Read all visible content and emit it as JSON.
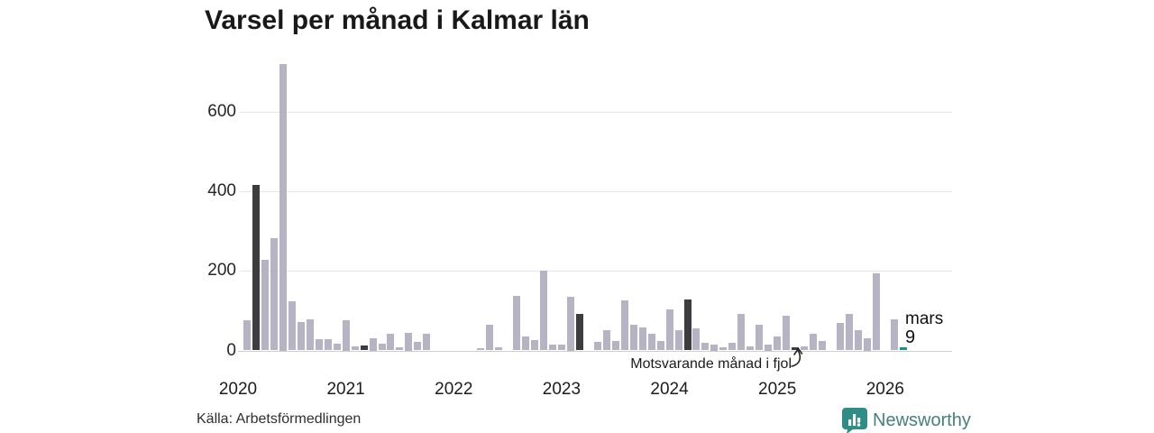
{
  "title": "Varsel per månad i Kalmar län",
  "source": "Källa: Arbetsförmedlingen",
  "annotation": "Motsvarande månad i fjol",
  "current_point_label": {
    "line1": "mars",
    "line2": "9"
  },
  "branding": {
    "name": "Newsworthy"
  },
  "colors": {
    "bar_default": "#b6b3c4",
    "bar_highlight": "#3d3c40",
    "bar_current": "#13998c",
    "grid": "#e6e6e6",
    "axis_line": "#cfcfcd",
    "text": "#1b1b1b",
    "brand_icon": "#2f8d86",
    "brand_text": "#45807f"
  },
  "chart_data": {
    "type": "bar",
    "title": "Varsel per månad i Kalmar län",
    "x_start_month": "2020-01",
    "x_end_month": "2026-03",
    "months": [
      "2020-01",
      "2020-02",
      "2020-03",
      "2020-04",
      "2020-05",
      "2020-06",
      "2020-07",
      "2020-08",
      "2020-09",
      "2020-10",
      "2020-11",
      "2020-12",
      "2021-01",
      "2021-02",
      "2021-03",
      "2021-04",
      "2021-05",
      "2021-06",
      "2021-07",
      "2021-08",
      "2021-09",
      "2021-10",
      "2021-11",
      "2021-12",
      "2022-01",
      "2022-02",
      "2022-03",
      "2022-04",
      "2022-05",
      "2022-06",
      "2022-07",
      "2022-08",
      "2022-09",
      "2022-10",
      "2022-11",
      "2022-12",
      "2023-01",
      "2023-02",
      "2023-03",
      "2023-04",
      "2023-05",
      "2023-06",
      "2023-07",
      "2023-08",
      "2023-09",
      "2023-10",
      "2023-11",
      "2023-12",
      "2024-01",
      "2024-02",
      "2024-03",
      "2024-04",
      "2024-05",
      "2024-06",
      "2024-07",
      "2024-08",
      "2024-09",
      "2024-10",
      "2024-11",
      "2024-12",
      "2025-01",
      "2025-02",
      "2025-03",
      "2025-04",
      "2025-05",
      "2025-06",
      "2025-07",
      "2025-08",
      "2025-09",
      "2025-10",
      "2025-11",
      "2025-12",
      "2026-01",
      "2026-02",
      "2026-03"
    ],
    "values": [
      0,
      76,
      416,
      227,
      282,
      720,
      124,
      72,
      79,
      28,
      28,
      17,
      75,
      10,
      13,
      30,
      17,
      43,
      7,
      45,
      22,
      42,
      0,
      0,
      0,
      0,
      0,
      6,
      65,
      8,
      0,
      137,
      36,
      26,
      200,
      14,
      14,
      135,
      92,
      0,
      22,
      52,
      23,
      125,
      64,
      57,
      43,
      23,
      102,
      50,
      128,
      55,
      19,
      15,
      9,
      19,
      91,
      11,
      64,
      15,
      35,
      87,
      8,
      11,
      43,
      23,
      0,
      68,
      91,
      51,
      30,
      193,
      0,
      79,
      9
    ],
    "highlight_months": [
      "2020-03",
      "2021-03",
      "2022-03",
      "2023-03",
      "2024-03",
      "2025-03"
    ],
    "highlight_meaning": "Motsvarande månad i fjol",
    "current_month": "2026-03",
    "current_value": 9,
    "annotation_target": "2025-03",
    "ylim": [
      0,
      730
    ],
    "yticks": [
      0,
      200,
      400,
      600
    ],
    "xtick_year_labels": [
      "2020",
      "2021",
      "2022",
      "2023",
      "2024",
      "2025",
      "2026"
    ],
    "grid": true,
    "legend": false
  }
}
